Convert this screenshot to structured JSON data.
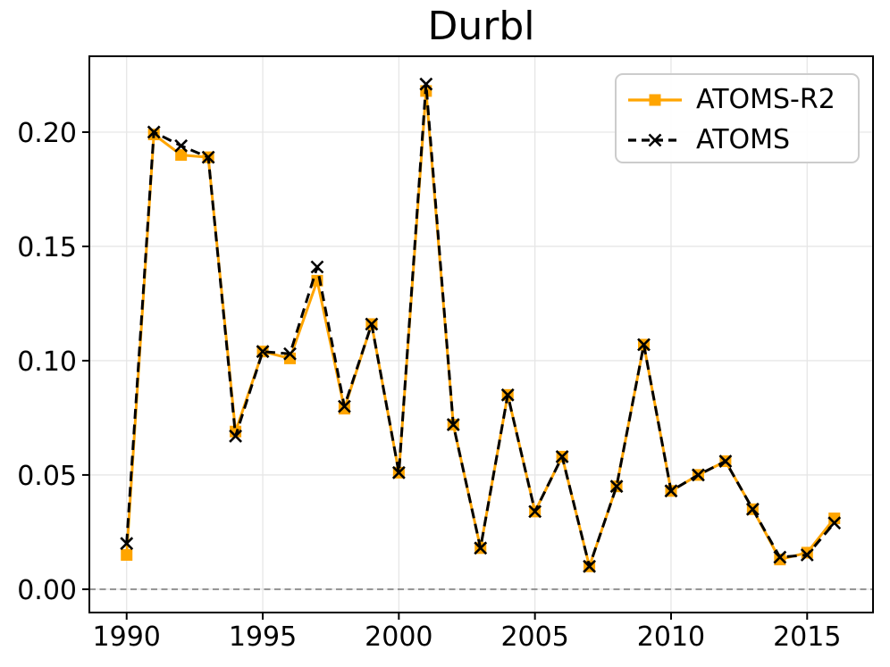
{
  "chart_data": {
    "type": "line",
    "title": "Durbl",
    "xlabel": "",
    "ylabel": "",
    "x": [
      1990,
      1991,
      1992,
      1993,
      1994,
      1995,
      1996,
      1997,
      1998,
      1999,
      2000,
      2001,
      2002,
      2003,
      2004,
      2005,
      2006,
      2007,
      2008,
      2009,
      2010,
      2011,
      2012,
      2013,
      2014,
      2015,
      2016
    ],
    "series": [
      {
        "name": "ATOMS-R2",
        "color": "#FFA500",
        "line_style": "solid",
        "marker": "square",
        "values": [
          0.015,
          0.199,
          0.19,
          0.189,
          0.069,
          0.104,
          0.101,
          0.135,
          0.079,
          0.116,
          0.051,
          0.218,
          0.072,
          0.018,
          0.085,
          0.034,
          0.058,
          0.01,
          0.045,
          0.107,
          0.043,
          0.05,
          0.056,
          0.035,
          0.013,
          0.016,
          0.031
        ]
      },
      {
        "name": "ATOMS",
        "color": "#000000",
        "line_style": "dashed",
        "marker": "x",
        "values": [
          0.02,
          0.2,
          0.194,
          0.189,
          0.067,
          0.104,
          0.103,
          0.141,
          0.08,
          0.116,
          0.051,
          0.221,
          0.072,
          0.018,
          0.085,
          0.034,
          0.058,
          0.01,
          0.045,
          0.107,
          0.043,
          0.05,
          0.056,
          0.035,
          0.014,
          0.015,
          0.029
        ]
      }
    ],
    "xticks": [
      1990,
      1995,
      2000,
      2005,
      2010,
      2015
    ],
    "xtick_labels": [
      "1990",
      "1995",
      "2000",
      "2005",
      "2010",
      "2015"
    ],
    "yticks": [
      0.0,
      0.05,
      0.1,
      0.15,
      0.2
    ],
    "ytick_labels": [
      "0.00",
      "0.05",
      "0.10",
      "0.15",
      "0.20"
    ],
    "xlim": [
      1988.63,
      2017.42
    ],
    "ylim": [
      -0.0102,
      0.2332
    ],
    "grid": true,
    "grid_color": "#e6e6e6",
    "zero_line": true,
    "zero_line_color": "#7f7f7f",
    "spine_color": "#000000",
    "legend_position": "upper right",
    "legend_border_color": "#cccccc"
  }
}
